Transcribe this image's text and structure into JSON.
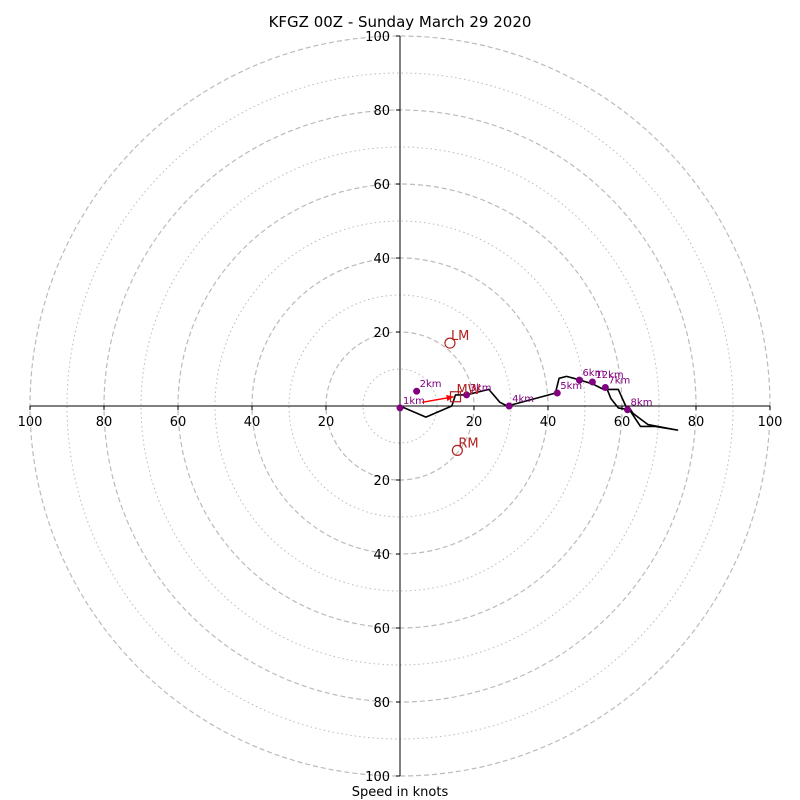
{
  "chart_data": {
    "type": "hodograph",
    "title": "KFGZ 00Z - Sunday March 29 2020",
    "xlabel": "Speed in knots",
    "units": "knots",
    "max_radius": 100,
    "rings": {
      "dashed": [
        20,
        40,
        60,
        80,
        100
      ],
      "dotted": [
        10,
        30,
        50,
        70,
        90
      ],
      "color": "#bbbbbb"
    },
    "tick_values": [
      20,
      40,
      60,
      80,
      100
    ],
    "tick_labels": [
      "20",
      "40",
      "60",
      "80",
      "100"
    ],
    "hodograph": {
      "color": "#000000",
      "points": [
        [
          0,
          0
        ],
        [
          7,
          -3
        ],
        [
          14,
          0
        ],
        [
          15,
          3
        ],
        [
          18,
          3
        ],
        [
          24,
          4.5
        ],
        [
          27,
          1
        ],
        [
          29,
          0
        ],
        [
          42,
          3.5
        ],
        [
          43,
          7.5
        ],
        [
          45,
          8
        ],
        [
          47,
          7.5
        ],
        [
          52,
          6
        ],
        [
          55,
          4.5
        ],
        [
          59,
          4.5
        ],
        [
          61,
          0
        ],
        [
          62,
          -0.5
        ],
        [
          63,
          -2
        ],
        [
          67,
          -5
        ],
        [
          75,
          -6.5
        ],
        [
          69,
          -5.5
        ],
        [
          65,
          -5.5
        ],
        [
          62,
          -1
        ],
        [
          59,
          -0.5
        ],
        [
          57,
          2
        ],
        [
          56,
          4.5
        ]
      ]
    },
    "height_markers": {
      "color": "#800080",
      "items": [
        {
          "label": "1km",
          "u": 0,
          "v": -0.5
        },
        {
          "label": "2km",
          "u": 4.5,
          "v": 4
        },
        {
          "label": "3km",
          "u": 18,
          "v": 3
        },
        {
          "label": "4km",
          "u": 29.5,
          "v": 0
        },
        {
          "label": "5km",
          "u": 42.5,
          "v": 3.5
        },
        {
          "label": "6km",
          "u": 48.5,
          "v": 7
        },
        {
          "label": "7km",
          "u": 55.5,
          "v": 5
        },
        {
          "label": "8km",
          "u": 61.5,
          "v": -1
        },
        {
          "label": "12km",
          "u": 52,
          "v": 6.5
        }
      ]
    },
    "storm_motion": {
      "color": "#b22222",
      "mw": {
        "label": "MW",
        "u": 15,
        "v": 2.5
      },
      "lm": {
        "label": "LM",
        "u": 13.5,
        "v": 17
      },
      "rm": {
        "label": "RM",
        "u": 15.5,
        "v": -12
      },
      "shear_arrow": {
        "from": [
          6,
          1
        ],
        "to": [
          14.5,
          2.5
        ]
      }
    }
  }
}
